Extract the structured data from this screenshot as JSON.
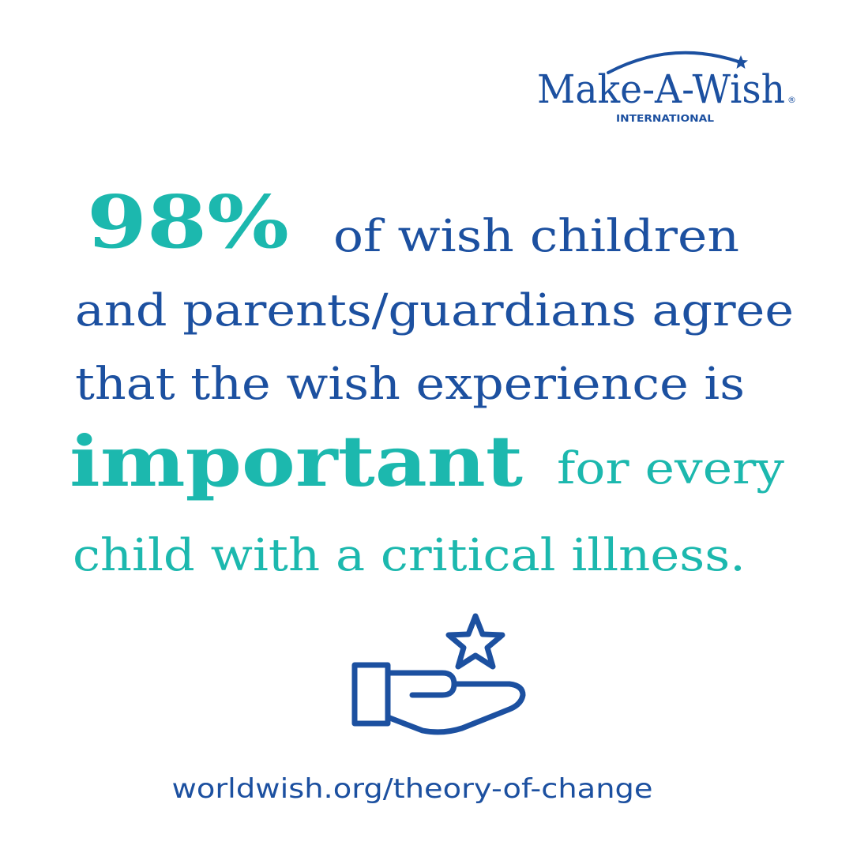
{
  "logo": {
    "name": "Make-A-Wish",
    "registered": "®",
    "subtitle": "INTERNATIONAL"
  },
  "statement": {
    "stat": "98%",
    "line1": "of wish children",
    "line2": "and parents/guardians agree",
    "line3": "that the wish experience is",
    "emphasis": "important",
    "line4": "for every",
    "line5": "child with a critical illness."
  },
  "footer": {
    "url": "worldwish.org/theory-of-change"
  }
}
